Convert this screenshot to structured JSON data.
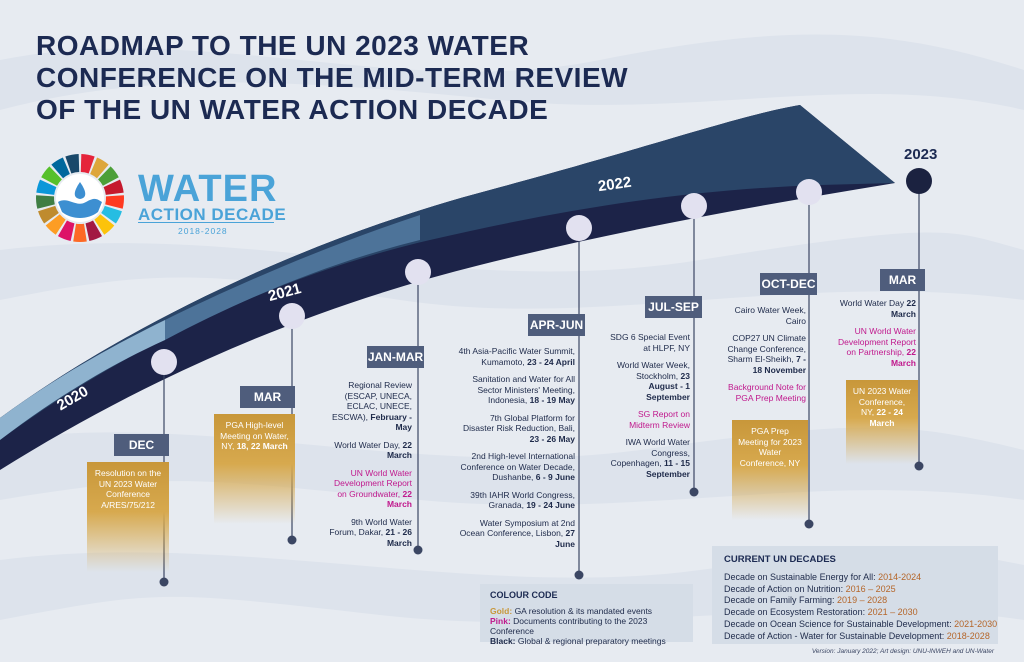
{
  "title": {
    "line1": "ROADMAP TO THE UN 2023 WATER",
    "line2": "CONFERENCE ON THE MID-TERM REVIEW",
    "line3": "OF THE UN WATER ACTION DECADE"
  },
  "logo": {
    "word1": "WATER",
    "word2": "ACTION DECADE",
    "years": "2018-2028",
    "wheel_colors": [
      "#e5243b",
      "#dda63a",
      "#4c9f38",
      "#c5192d",
      "#ff3a21",
      "#26bde2",
      "#fcc30b",
      "#a21942",
      "#fd6925",
      "#dd1367",
      "#fd9d24",
      "#bf8b2e",
      "#3f7e44",
      "#0a97d9",
      "#56c02b",
      "#00689d",
      "#19486a"
    ]
  },
  "years": {
    "y2020": "2020",
    "y2021": "2021",
    "y2022": "2022",
    "y2023": "2023"
  },
  "periods": {
    "dec": "DEC",
    "mar2021": "MAR",
    "janmar": "JAN-MAR",
    "aprjun": "APR-JUN",
    "julsep": "JUL-SEP",
    "octdec": "OCT-DEC",
    "mar2023": "MAR"
  },
  "events": {
    "dec": {
      "gold1": "Resolution on the UN 2023 Water Conference A/RES/75/212"
    },
    "mar2021": {
      "gold_pre": "PGA High-level Meeting on Water, NY, ",
      "gold_bold": "18, 22 March"
    },
    "janmar": [
      {
        "pre": "Regional Review (ESCAP, UNECA, ECLAC, UNECE, ESCWA), ",
        "bold": "February - May",
        "kind": "black"
      },
      {
        "pre": "World Water Day, ",
        "bold": "22 March",
        "kind": "black"
      },
      {
        "pre": "UN World Water Development Report on Groundwater, ",
        "bold": "22 March",
        "kind": "pink"
      },
      {
        "pre": "9th World Water Forum, Dakar, ",
        "bold": "21 - 26 March",
        "kind": "black"
      }
    ],
    "aprjun": [
      {
        "pre": "4th Asia-Pacific Water Summit, Kumamoto, ",
        "bold": "23 - 24 April",
        "kind": "black"
      },
      {
        "pre": "Sanitation and Water for All Sector Ministers' Meeting, Indonesia, ",
        "bold": "18 - 19 May",
        "kind": "black"
      },
      {
        "pre": "7th Global Platform for Disaster Risk Reduction, Bali, ",
        "bold": "23 - 26 May",
        "kind": "black"
      },
      {
        "pre": "2nd High-level International Conference on Water Decade, Dushanbe, ",
        "bold": "6 - 9 June",
        "kind": "black"
      },
      {
        "pre": "39th IAHR World Congress, Granada, ",
        "bold": "19 - 24 June",
        "kind": "black"
      },
      {
        "pre": "Water Symposium at 2nd Ocean Conference, Lisbon, ",
        "bold": "27 June",
        "kind": "black"
      }
    ],
    "julsep": [
      {
        "pre": "SDG 6 Special Event at HLPF, NY",
        "bold": "",
        "kind": "black"
      },
      {
        "pre": "World Water Week, Stockholm, ",
        "bold": "23 August - 1 September",
        "kind": "black"
      },
      {
        "pre": "SG Report on Midterm Review",
        "bold": "",
        "kind": "pink"
      },
      {
        "pre": "IWA World Water Congress, Copenhagen, ",
        "bold": "11 - 15 September",
        "kind": "black"
      }
    ],
    "octdec": [
      {
        "pre": "Cairo Water Week, Cairo",
        "bold": "",
        "kind": "black"
      },
      {
        "pre": "COP27 UN Climate Change Conference, Sharm El-Sheikh, ",
        "bold": "7 - 18 November",
        "kind": "black"
      },
      {
        "pre": "Background Note for PGA Prep Meeting",
        "bold": "",
        "kind": "pink"
      }
    ],
    "octdec_gold": "PGA Prep Meeting for 2023 Water Conference, NY",
    "mar2023": [
      {
        "pre": "World Water Day ",
        "bold": "22 March",
        "kind": "black"
      },
      {
        "pre": "UN World Water Development Report on Partnership, ",
        "bold": "22 March",
        "kind": "pink"
      }
    ],
    "mar2023_gold_pre": "UN 2023 Water Conference, NY, ",
    "mar2023_gold_bold": "22 - 24 March"
  },
  "legend": {
    "heading": "COLOUR CODE",
    "gold_key": "Gold:",
    "gold_text": " GA resolution & its mandated events",
    "pink_key": "Pink:",
    "pink_text": " Documents contributing to the 2023 Conference",
    "black_key": "Black:",
    "black_text": " Global & regional preparatory meetings",
    "colors": {
      "gold": "#c8973a",
      "pink": "#c0198d",
      "black": "#1e2a4a"
    }
  },
  "decades": {
    "heading": "CURRENT UN DECADES",
    "items": [
      {
        "name": "Decade on Sustainable Energy for All: ",
        "years": "2014-2024"
      },
      {
        "name": "Decade of Action on Nutrition: ",
        "years": "2016 – 2025"
      },
      {
        "name": "Decade on Family Farming: ",
        "years": "2019 – 2028"
      },
      {
        "name": "Decade on Ecosystem Restoration: ",
        "years": "2021 – 2030"
      },
      {
        "name": "Decade on Ocean Science for Sustainable Development: ",
        "years": "2021-2030"
      },
      {
        "name": "Decade of Action - Water for Sustainable Development: ",
        "years": "2018-2028"
      }
    ]
  },
  "footer": "Version: January 2022; Art design: UNU-INWEH and UN-Water",
  "colors": {
    "navy": "#1c2348",
    "steel": "#2a4568",
    "light_blue": "#8fb3cf",
    "period_box": "#4f5d7c",
    "gold": "#c8973a",
    "pink": "#c0198d",
    "node": "#e2e1f0",
    "node_2023": "#1b2240"
  }
}
